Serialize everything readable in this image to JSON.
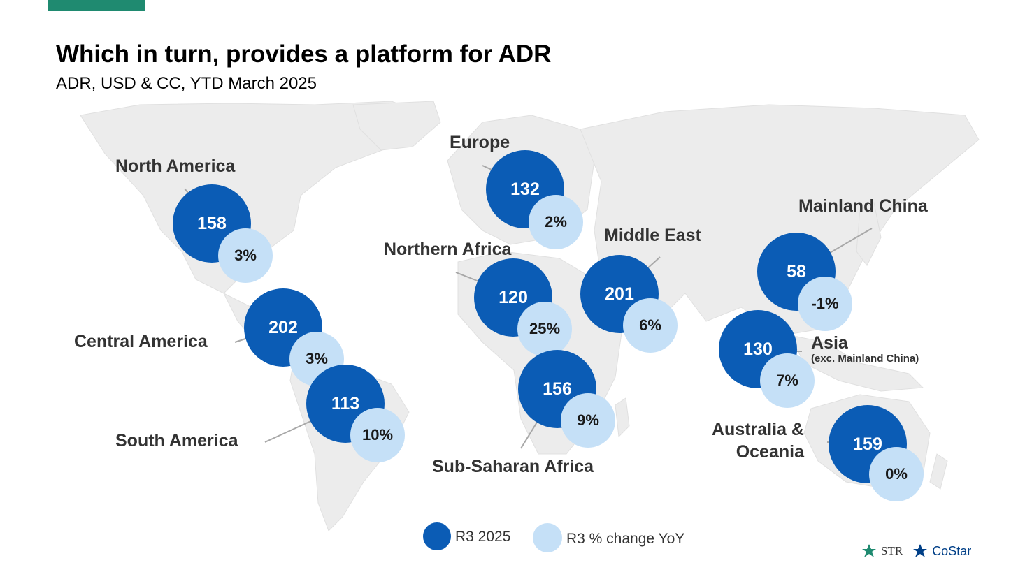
{
  "header": {
    "title": "Which in turn, provides a platform for ADR",
    "subtitle": "ADR, USD & CC, YTD March 2025"
  },
  "regions": [
    {
      "id": "north-america",
      "name": "North America",
      "adr": "158",
      "change": "3%"
    },
    {
      "id": "central-america",
      "name": "Central America",
      "adr": "202",
      "change": "3%"
    },
    {
      "id": "south-america",
      "name": "South America",
      "adr": "113",
      "change": "10%"
    },
    {
      "id": "europe",
      "name": "Europe",
      "adr": "132",
      "change": "2%"
    },
    {
      "id": "northern-africa",
      "name": "Northern Africa",
      "adr": "120",
      "change": "25%"
    },
    {
      "id": "sub-saharan-africa",
      "name": "Sub-Saharan Africa",
      "adr": "156",
      "change": "9%"
    },
    {
      "id": "middle-east",
      "name": "Middle East",
      "adr": "201",
      "change": "6%"
    },
    {
      "id": "mainland-china",
      "name": "Mainland China",
      "adr": "58",
      "change": "-1%"
    },
    {
      "id": "asia",
      "name": "Asia",
      "sub": "(exc. Mainland China)",
      "adr": "130",
      "change": "7%"
    },
    {
      "id": "australia-oceania",
      "name_line1": "Australia &",
      "name_line2": "Oceania",
      "adr": "159",
      "change": "0%"
    }
  ],
  "legend": {
    "adr_label": "R3 2025",
    "change_label": "R3 % change YoY"
  },
  "logos": {
    "str": "STR",
    "costar": "CoStar"
  },
  "colors": {
    "accent_bar": "#1f8a70",
    "adr_bubble": "#0b5cb5",
    "change_bubble": "#c5e0f7",
    "map_land": "#ececec"
  }
}
